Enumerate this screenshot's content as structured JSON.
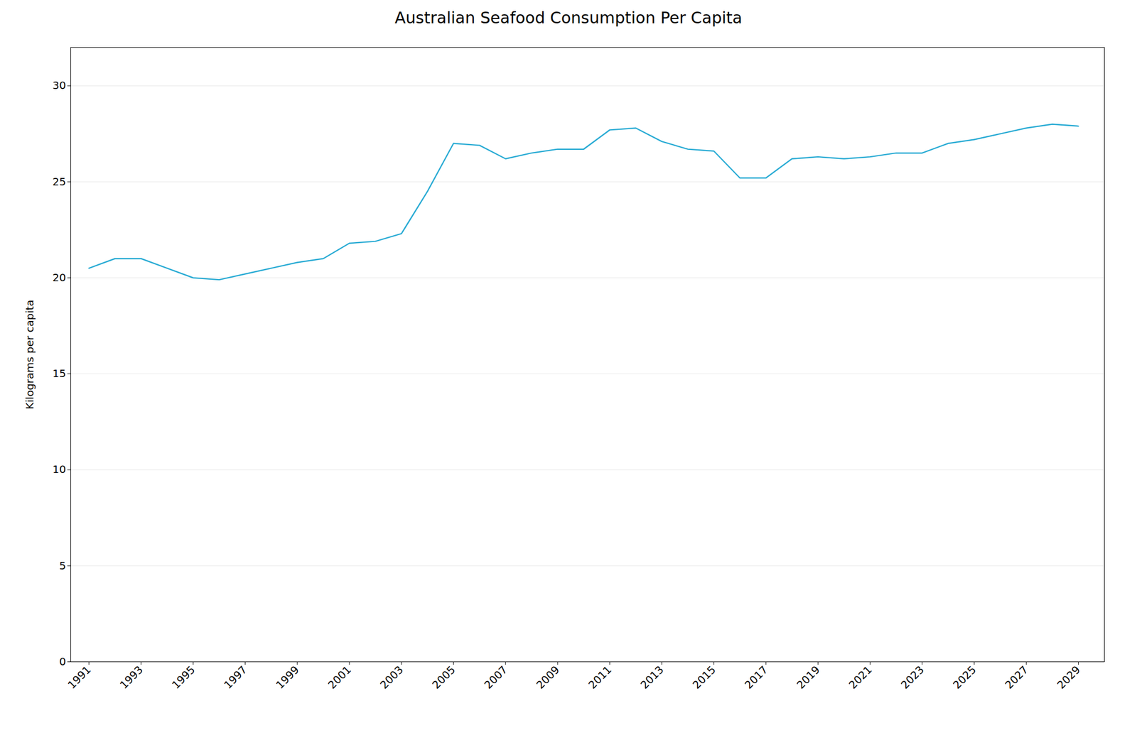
{
  "chart_data": {
    "type": "line",
    "title": "Australian Seafood Consumption Per Capita",
    "ylabel": "Kilograms per capita",
    "x": [
      1991,
      1992,
      1993,
      1994,
      1995,
      1996,
      1997,
      1998,
      1999,
      2000,
      2001,
      2002,
      2003,
      2004,
      2005,
      2006,
      2007,
      2008,
      2009,
      2010,
      2011,
      2012,
      2013,
      2014,
      2015,
      2016,
      2017,
      2018,
      2019,
      2020,
      2021,
      2022,
      2023,
      2024,
      2025,
      2026,
      2027,
      2028,
      2029
    ],
    "values": [
      20.5,
      21.0,
      21.0,
      20.5,
      20.0,
      19.9,
      20.2,
      20.5,
      20.8,
      21.0,
      21.8,
      21.9,
      22.3,
      24.5,
      27.0,
      26.9,
      26.2,
      26.5,
      26.7,
      26.7,
      27.7,
      27.8,
      27.1,
      26.7,
      26.6,
      25.2,
      25.2,
      26.2,
      26.3,
      26.2,
      26.3,
      26.5,
      26.5,
      27.0,
      27.2,
      27.5,
      27.8,
      28.0,
      27.9
    ],
    "color": "#29ABD4",
    "xlim": [
      1990.3,
      2030.0
    ],
    "xticks": [
      1991,
      1993,
      1995,
      1997,
      1999,
      2001,
      2003,
      2005,
      2007,
      2009,
      2011,
      2013,
      2015,
      2017,
      2019,
      2021,
      2023,
      2025,
      2027,
      2029
    ],
    "ylim": [
      0,
      32
    ],
    "yticks": [
      0,
      5,
      10,
      15,
      20,
      25,
      30
    ],
    "grid": true
  }
}
